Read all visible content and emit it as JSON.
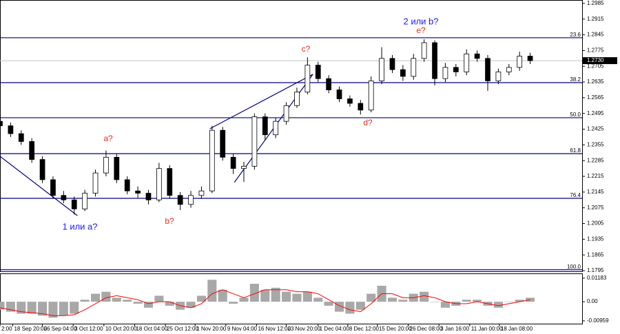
{
  "chart_data": [
    {
      "type": "candlestick",
      "xlim": [
        0,
        54.9
      ],
      "ylim": [
        1.1789,
        1.3
      ],
      "yticks": [
        1.2985,
        1.2915,
        1.2845,
        1.2775,
        1.2705,
        1.2635,
        1.2565,
        1.2495,
        1.2425,
        1.2355,
        1.2285,
        1.2215,
        1.2145,
        1.2075,
        1.2005,
        1.1935,
        1.1865,
        1.1795
      ],
      "xticks": [
        {
          "value": 0,
          "label": "2:00"
        },
        {
          "value": 1.2,
          "label": "18 Sep 20:00"
        },
        {
          "value": 4.0,
          "label": "26 Sep 04:00"
        },
        {
          "value": 6.9,
          "label": "3 Oct 12:00"
        },
        {
          "value": 9.8,
          "label": "10 Oct 20:00"
        },
        {
          "value": 12.7,
          "label": "18 Oct 04:00"
        },
        {
          "value": 15.6,
          "label": "25 Oct 12:00"
        },
        {
          "value": 18.4,
          "label": "1 Nov 20:00"
        },
        {
          "value": 21.3,
          "label": "9 Nov 04:00"
        },
        {
          "value": 24.2,
          "label": "16 Nov 12:00"
        },
        {
          "value": 27.0,
          "label": "23 Nov 20:00"
        },
        {
          "value": 30.0,
          "label": "1 Dec 04:00"
        },
        {
          "value": 32.8,
          "label": "8 Dec 12:00"
        },
        {
          "value": 35.6,
          "label": "15 Dec 20:00"
        },
        {
          "value": 38.5,
          "label": "26 Dec 08:00"
        },
        {
          "value": 41.4,
          "label": "3 Jan 16:00"
        },
        {
          "value": 44.3,
          "label": "11 Jan 00:00"
        },
        {
          "value": 47.1,
          "label": "18 Jan 08:00"
        }
      ],
      "open": [
        1.246,
        1.244,
        1.2405,
        1.237,
        1.229,
        1.22,
        1.213,
        1.211,
        1.207,
        1.214,
        1.223,
        1.23,
        1.22,
        1.215,
        1.214,
        1.211,
        1.225,
        1.213,
        1.209,
        1.213,
        1.215,
        1.242,
        1.23,
        1.225,
        1.226,
        1.248,
        1.24,
        1.246,
        1.253,
        1.259,
        1.271,
        1.265,
        1.26,
        1.256,
        1.254,
        1.251,
        1.264,
        1.274,
        1.269,
        1.266,
        1.274,
        1.281,
        1.265,
        1.27,
        1.268,
        1.276,
        1.274,
        1.264,
        1.268,
        1.27,
        1.275
      ],
      "high": [
        1.2475,
        1.2455,
        1.242,
        1.2385,
        1.2305,
        1.2215,
        1.215,
        1.2125,
        1.2155,
        1.2245,
        1.233,
        1.2315,
        1.2215,
        1.217,
        1.2155,
        1.2275,
        1.2265,
        1.2145,
        1.215,
        1.217,
        1.244,
        1.2435,
        1.2315,
        1.228,
        1.2495,
        1.2495,
        1.2475,
        1.2545,
        1.261,
        1.2745,
        1.2725,
        1.2665,
        1.2615,
        1.2575,
        1.2555,
        1.266,
        1.279,
        1.2755,
        1.271,
        1.276,
        1.2825,
        1.282,
        1.272,
        1.2715,
        1.278,
        1.2775,
        1.2755,
        1.2695,
        1.2715,
        1.277,
        1.2765
      ],
      "low": [
        1.2425,
        1.239,
        1.2355,
        1.2275,
        1.2185,
        1.2115,
        1.2095,
        1.2045,
        1.206,
        1.2125,
        1.2215,
        1.2185,
        1.2135,
        1.212,
        1.209,
        1.21,
        1.2115,
        1.2065,
        1.2075,
        1.2115,
        1.214,
        1.2285,
        1.2225,
        1.219,
        1.2245,
        1.2375,
        1.2385,
        1.2445,
        1.252,
        1.258,
        1.2635,
        1.2585,
        1.2545,
        1.2525,
        1.249,
        1.25,
        1.2625,
        1.2675,
        1.264,
        1.2645,
        1.2725,
        1.262,
        1.2635,
        1.266,
        1.2665,
        1.2725,
        1.2595,
        1.2625,
        1.2665,
        1.2685,
        1.2715
      ],
      "close": [
        1.244,
        1.2405,
        1.237,
        1.229,
        1.22,
        1.213,
        1.211,
        1.207,
        1.214,
        1.223,
        1.23,
        1.22,
        1.215,
        1.214,
        1.211,
        1.225,
        1.213,
        1.209,
        1.213,
        1.215,
        1.242,
        1.23,
        1.225,
        1.226,
        1.248,
        1.24,
        1.246,
        1.253,
        1.259,
        1.271,
        1.265,
        1.26,
        1.256,
        1.254,
        1.251,
        1.264,
        1.274,
        1.269,
        1.266,
        1.274,
        1.281,
        1.265,
        1.27,
        1.268,
        1.276,
        1.274,
        1.264,
        1.268,
        1.27,
        1.275,
        1.273
      ],
      "up_color": "#ffffff",
      "down_color": "#000000",
      "edge_color": "#000000",
      "levels": [
        {
          "label": "23.6",
          "price": 1.2832
        },
        {
          "label": "38.2",
          "price": 1.2632
        },
        {
          "label": "50.0",
          "price": 1.2476
        },
        {
          "label": "61.8",
          "price": 1.2316
        },
        {
          "label": "76.4",
          "price": 1.2117
        },
        {
          "label": "100.0",
          "price": 1.1799
        }
      ],
      "level_color": "#000080",
      "trend_lines": [
        {
          "x": [
            0,
            7.3
          ],
          "y": [
            1.2304,
            1.204
          ]
        },
        {
          "x": [
            19.8,
            29.5
          ],
          "y": [
            1.2427,
            1.2669
          ]
        },
        {
          "x": [
            22.1,
            29.5
          ],
          "y": [
            1.2188,
            1.2669
          ]
        }
      ],
      "last_price": {
        "value": 1.273,
        "label": "1.2730"
      },
      "annotations": [
        "2 или b?",
        "e?",
        "c?",
        "d?",
        "a?",
        "b?",
        "1 или a?"
      ]
    },
    {
      "type": "bar",
      "ylim": [
        -0.011,
        0.0142
      ],
      "yticks": [
        0.01183,
        {
          "value": 0,
          "label": "0.00"
        },
        -0.00959
      ],
      "series": [
        {
          "color": "#a8a8a8",
          "values": [
            -0.004,
            -0.005,
            -0.006,
            -0.006,
            -0.007,
            -0.008,
            -0.007,
            -0.006,
            0.001,
            0.004,
            0.005,
            0.002,
            0.001,
            -0.001,
            -0.003,
            0.003,
            -0.002,
            -0.004,
            -0.003,
            0.003,
            0.011,
            0.006,
            -0.001,
            0.002,
            0.009,
            0.006,
            0.007,
            0.005,
            0.004,
            0.005,
            0.002,
            -0.002,
            -0.005,
            -0.006,
            -0.004,
            0.004,
            0.008,
            0.002,
            0.001,
            0.004,
            0.005,
            0.0,
            -0.003,
            -0.002,
            0.001,
            0.001,
            -0.002,
            -0.003,
            0.0,
            0.001,
            0.002
          ]
        },
        {
          "type": "line",
          "color": "#ff0000",
          "values": [
            -0.003,
            -0.004,
            -0.005,
            -0.0055,
            -0.006,
            -0.007,
            -0.007,
            -0.0065,
            -0.004,
            -0.001,
            0.002,
            0.003,
            0.002,
            0.001,
            -0.001,
            0.0,
            0.0,
            -0.002,
            -0.003,
            -0.001,
            0.004,
            0.006,
            0.004,
            0.002,
            0.004,
            0.006,
            0.006,
            0.006,
            0.005,
            0.005,
            0.004,
            0.001,
            -0.002,
            -0.004,
            -0.005,
            -0.001,
            0.004,
            0.004,
            0.002,
            0.002,
            0.003,
            0.002,
            0.0,
            -0.001,
            -0.001,
            0.0,
            -0.001,
            -0.002,
            -0.001,
            0.0,
            0.001
          ]
        }
      ]
    }
  ]
}
